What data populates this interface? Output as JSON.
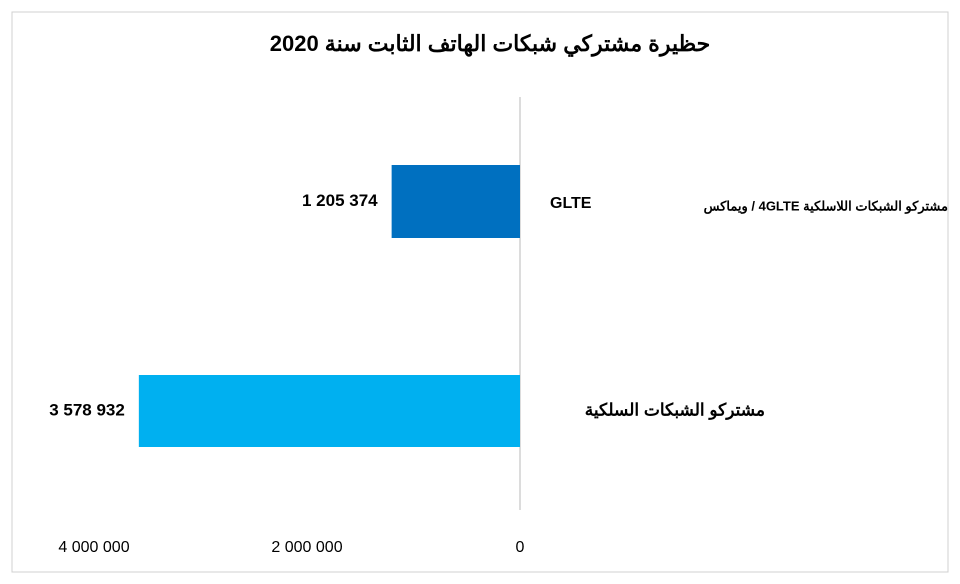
{
  "chart_data": {
    "type": "hbar",
    "title": "حظيرة مشتركي شبكات الهاتف الثابت سنة 2020",
    "categories": [
      "مشتركو الشبكات اللاسلكية 4GLTE / ويماكس",
      "مشتركو الشبكات السلكية"
    ],
    "annotations": [
      "GLTE"
    ],
    "series": [
      {
        "name": null,
        "colors": [
          "#0070c0",
          "#00b0f0"
        ],
        "values": [
          1205374,
          3578932
        ],
        "value_labels": [
          "1 205 374",
          "3 578 932"
        ]
      }
    ],
    "xlim": [
      0,
      4000000
    ],
    "x_reversed": true,
    "xticks": [
      {
        "value": 4000000,
        "label": "4 000 000"
      },
      {
        "value": 2000000,
        "label": "2 000 000"
      },
      0
    ],
    "grid": false
  }
}
